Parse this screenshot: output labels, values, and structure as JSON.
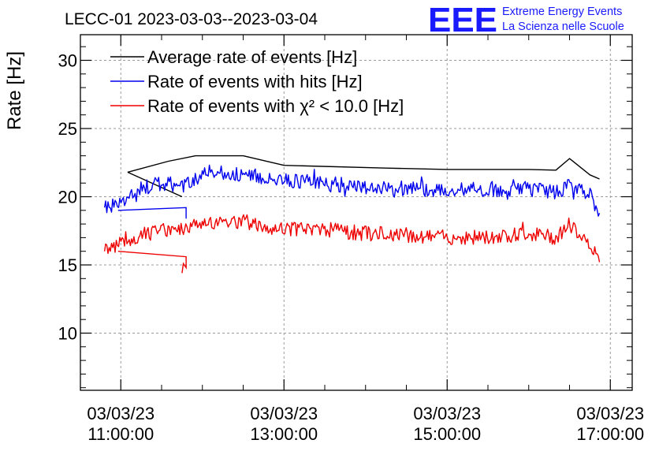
{
  "chart_data": {
    "type": "line",
    "title": "LECC-01 2023-03-03--2023-03-04",
    "ylabel": "Rate [Hz]",
    "xlabel": "",
    "ylim": [
      5.5,
      31.5
    ],
    "xlim_hours": [
      10.55,
      17.05
    ],
    "yticks": [
      10,
      15,
      20,
      25,
      30
    ],
    "xticks": [
      {
        "hour": 11,
        "date": "03/03/23",
        "time": "11:00:00"
      },
      {
        "hour": 13,
        "date": "03/03/23",
        "time": "13:00:00"
      },
      {
        "hour": 15,
        "date": "03/03/23",
        "time": "15:00:00"
      },
      {
        "hour": 17,
        "date": "03/03/23",
        "time": "17:00:00"
      }
    ],
    "grid": true,
    "legend_position": "top-left",
    "logo": {
      "mark": "EEE",
      "line1": "Extreme Energy Events",
      "line2": "La Scienza nelle Scuole",
      "color": "#1a1aff"
    },
    "series": [
      {
        "name": "Average rate of events [Hz]",
        "color": "#000000",
        "x": [
          "11:05",
          "11:35",
          "11:55",
          "12:30",
          "13:00",
          "14:15",
          "15:00",
          "16:00",
          "16:20",
          "16:30",
          "16:45",
          "16:52"
        ],
        "values": [
          21.8,
          22.6,
          23.0,
          23.0,
          22.3,
          22.1,
          22.0,
          22.0,
          21.95,
          22.8,
          21.6,
          21.3
        ],
        "extra": {
          "x": [
            "11:05",
            "11:45"
          ],
          "values": [
            21.8,
            20.0
          ]
        }
      },
      {
        "name": "Rate of events with hits [Hz]",
        "color": "#0000ee",
        "x_start": "10:48",
        "x_end": "16:52",
        "y_start": 19.2,
        "y_end": 18.8,
        "noise": 0.55,
        "profile": [
          [
            "10:48",
            19.2
          ],
          [
            "11:00",
            19.6
          ],
          [
            "11:15",
            20.6
          ],
          [
            "11:30",
            21.0
          ],
          [
            "11:45",
            20.8
          ],
          [
            "12:00",
            21.6
          ],
          [
            "12:15",
            21.8
          ],
          [
            "12:30",
            21.6
          ],
          [
            "13:00",
            21.2
          ],
          [
            "13:30",
            21.0
          ],
          [
            "14:00",
            20.7
          ],
          [
            "14:30",
            20.6
          ],
          [
            "15:00",
            20.5
          ],
          [
            "15:30",
            20.5
          ],
          [
            "16:00",
            20.6
          ],
          [
            "16:20",
            20.3
          ],
          [
            "16:30",
            20.9
          ],
          [
            "16:45",
            20.2
          ],
          [
            "16:52",
            18.8
          ]
        ],
        "extra": {
          "x": [
            "10:58",
            "11:48",
            "11:48"
          ],
          "values": [
            19.0,
            19.2,
            18.4
          ]
        }
      },
      {
        "name": "Rate of events with χ² < 10.0 [Hz]",
        "color": "#ee0000",
        "x_start": "10:48",
        "x_end": "16:52",
        "y_start": 16.0,
        "y_end": 15.2,
        "noise": 0.55,
        "profile": [
          [
            "10:48",
            16.0
          ],
          [
            "11:00",
            16.6
          ],
          [
            "11:15",
            17.2
          ],
          [
            "11:30",
            17.5
          ],
          [
            "11:45",
            17.5
          ],
          [
            "12:00",
            18.0
          ],
          [
            "12:15",
            18.2
          ],
          [
            "12:30",
            18.0
          ],
          [
            "13:00",
            17.6
          ],
          [
            "13:30",
            17.6
          ],
          [
            "14:00",
            17.3
          ],
          [
            "14:30",
            17.2
          ],
          [
            "15:00",
            17.0
          ],
          [
            "15:30",
            17.0
          ],
          [
            "16:00",
            17.3
          ],
          [
            "16:20",
            17.0
          ],
          [
            "16:30",
            18.0
          ],
          [
            "16:45",
            16.6
          ],
          [
            "16:52",
            15.2
          ]
        ],
        "extra": {
          "x": [
            "10:58",
            "11:48",
            "11:48",
            "11:46",
            "11:45"
          ],
          "values": [
            16.0,
            15.6,
            14.8,
            15.1,
            14.4
          ]
        }
      }
    ]
  }
}
